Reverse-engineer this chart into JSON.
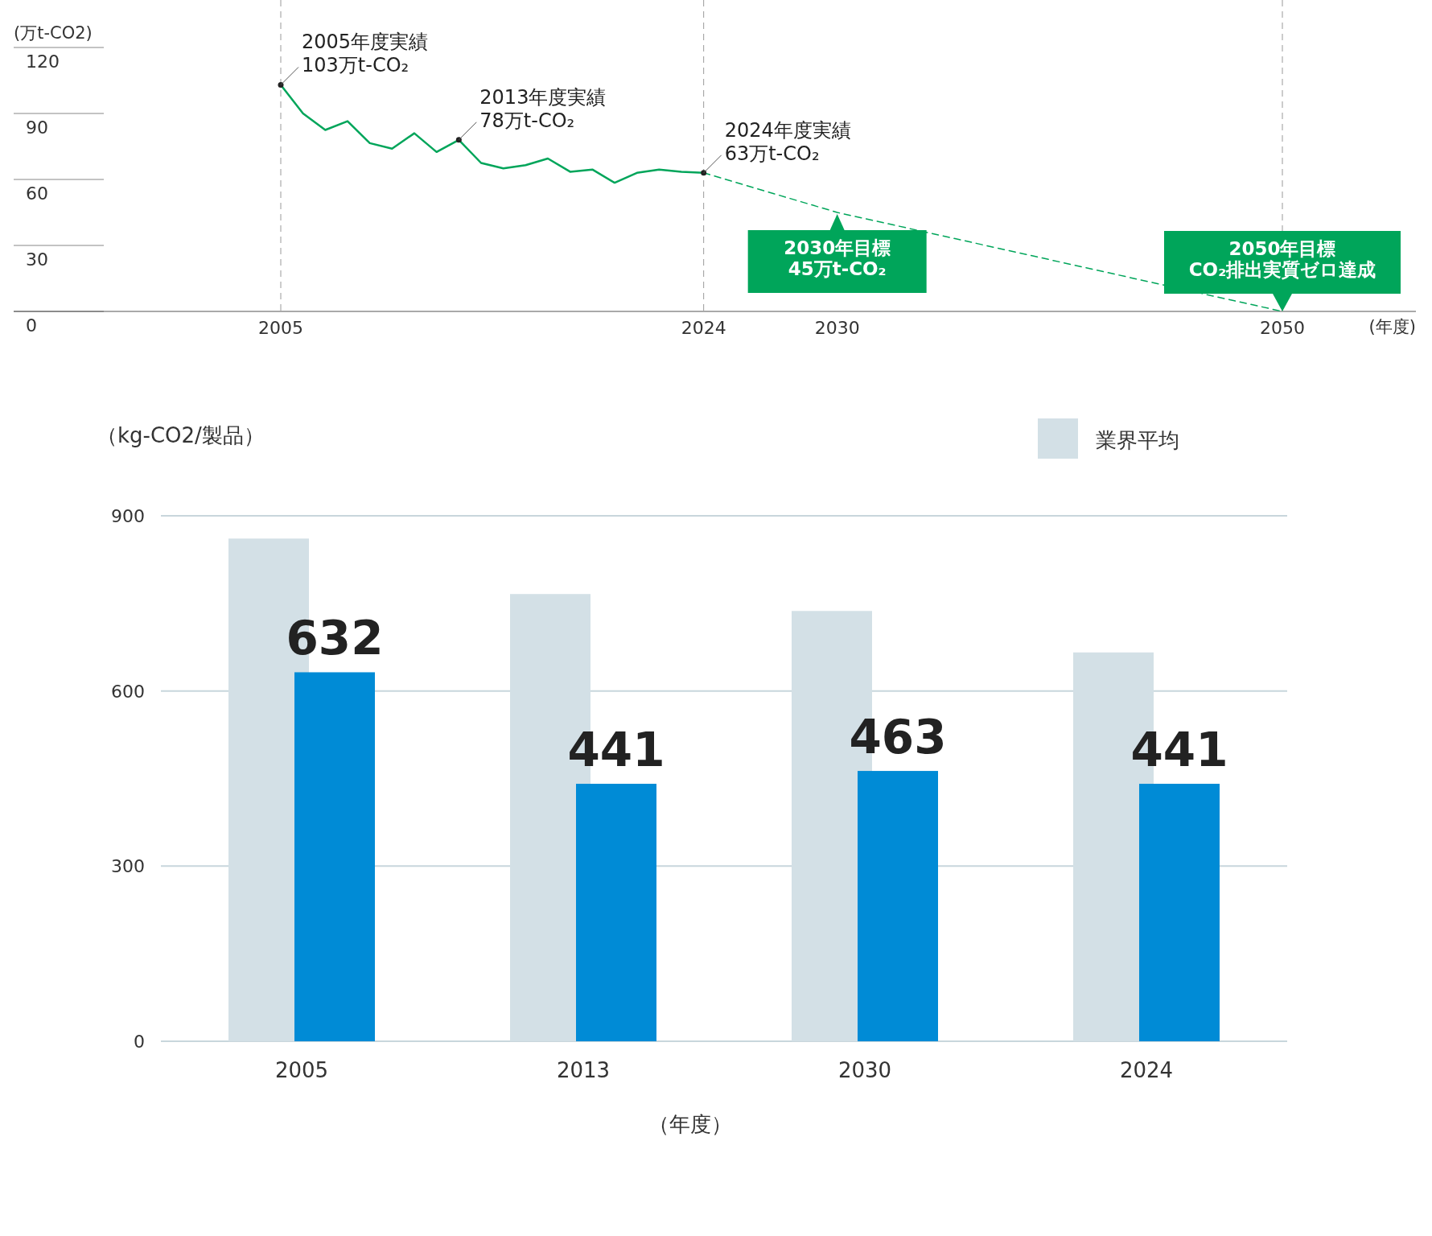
{
  "chart_data": [
    {
      "type": "line",
      "xlabel": "(年度)",
      "ylabel": "(万t-CO2)",
      "xlim": [
        1993,
        2056
      ],
      "ylim": [
        0,
        120
      ],
      "xticks": [
        2005,
        2024,
        2030,
        2050
      ],
      "yticks": [
        0,
        30,
        60,
        90,
        120
      ],
      "series": [
        {
          "color": "#00a55a",
          "x": [
            2005,
            2006,
            2007,
            2008,
            2009,
            2010,
            2011,
            2012,
            2013,
            2014,
            2015,
            2016,
            2017,
            2018,
            2019,
            2020,
            2021,
            2022,
            2023,
            2024
          ],
          "values": [
            103,
            90,
            82.5,
            86.5,
            76.5,
            74,
            81,
            72.5,
            78,
            67.5,
            65,
            66.5,
            69.5,
            63.5,
            64.5,
            58.5,
            63,
            64.5,
            63.5,
            63
          ]
        },
        {
          "color": "#00a55a",
          "line_style": "dashed",
          "x": [
            2024,
            2030,
            2050
          ],
          "values": [
            63,
            45,
            0
          ]
        }
      ],
      "ref_lines": [
        {
          "axis": "x",
          "value": 2005,
          "color": "#999999",
          "line_style": "dashed"
        },
        {
          "axis": "x",
          "value": 2024,
          "color": "#999999",
          "line_style": "dashed"
        },
        {
          "axis": "x",
          "value": 2050,
          "color": "#999999",
          "line_style": "dashed"
        }
      ],
      "annotations": [
        {
          "text": "2005年度実績\n103万t-CO₂",
          "x": 2005,
          "y": 103
        },
        {
          "text": "2013年度実績\n78万t-CO₂",
          "x": 2013,
          "y": 78
        },
        {
          "text": "2024年度実績\n63万t-CO₂",
          "x": 2024,
          "y": 63
        },
        {
          "text": "2030年目標\n45万t-CO₂",
          "x": 2030,
          "y": 45
        },
        {
          "text": "2050年目標\nCO₂排出実質ゼロ達成",
          "x": 2050,
          "y": 0
        }
      ]
    },
    {
      "type": "bar",
      "xlabel": "（年度）",
      "ylabel": "（kg-CO2/製品）",
      "categories": [
        "2005",
        "2013",
        "2030",
        "2024"
      ],
      "ylim": [
        0,
        900
      ],
      "yticks": [
        0,
        300,
        600,
        900
      ],
      "grid": "y",
      "legend": "top right",
      "series": [
        {
          "name": "業界平均",
          "color": "#d3e0e6",
          "values": [
            861,
            766,
            737,
            666
          ]
        },
        {
          "color": "#008bd6",
          "values": [
            632,
            441,
            463,
            441
          ],
          "data_labels": true
        }
      ]
    }
  ]
}
